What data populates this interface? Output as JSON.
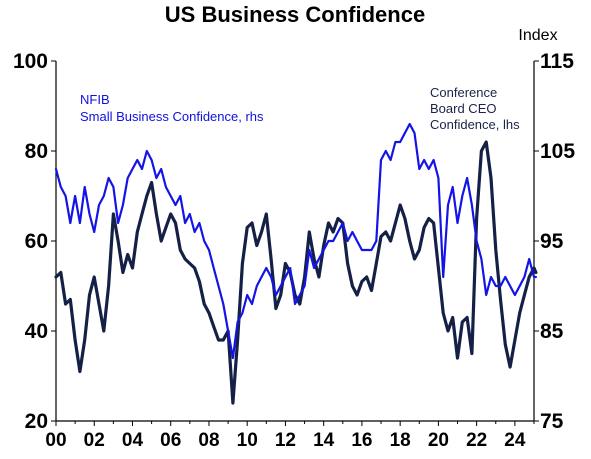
{
  "chart_data": {
    "type": "line",
    "title": "US Business Confidence",
    "right_axis_unit": "Index",
    "xlim": [
      2000,
      2025
    ],
    "x_tick_labels": [
      "00",
      "02",
      "04",
      "06",
      "08",
      "10",
      "12",
      "14",
      "16",
      "18",
      "20",
      "22",
      "24"
    ],
    "x_tick_values": [
      2000,
      2002,
      2004,
      2006,
      2008,
      2010,
      2012,
      2014,
      2016,
      2018,
      2020,
      2022,
      2024
    ],
    "y_left": {
      "ylim": [
        20,
        100
      ],
      "ticks": [
        20,
        40,
        60,
        80,
        100
      ]
    },
    "y_right": {
      "ylim": [
        75,
        115
      ],
      "ticks": [
        75,
        85,
        95,
        105,
        115
      ]
    },
    "grid": false,
    "series": [
      {
        "name": "Conference Board CEO Confidence, lhs",
        "axis": "left",
        "color": "#152046",
        "label_lines": [
          "Conference",
          "Board CEO",
          "Confidence, lhs"
        ],
        "points": [
          [
            2000.0,
            52
          ],
          [
            2000.25,
            53
          ],
          [
            2000.5,
            46
          ],
          [
            2000.75,
            47
          ],
          [
            2001.0,
            38
          ],
          [
            2001.25,
            31
          ],
          [
            2001.5,
            38
          ],
          [
            2001.75,
            48
          ],
          [
            2002.0,
            52
          ],
          [
            2002.25,
            46
          ],
          [
            2002.5,
            40
          ],
          [
            2002.75,
            50
          ],
          [
            2003.0,
            66
          ],
          [
            2003.25,
            60
          ],
          [
            2003.5,
            53
          ],
          [
            2003.75,
            57
          ],
          [
            2004.0,
            54
          ],
          [
            2004.25,
            62
          ],
          [
            2004.5,
            66
          ],
          [
            2004.75,
            70
          ],
          [
            2005.0,
            73
          ],
          [
            2005.25,
            66
          ],
          [
            2005.5,
            60
          ],
          [
            2005.75,
            63
          ],
          [
            2006.0,
            66
          ],
          [
            2006.25,
            64
          ],
          [
            2006.5,
            58
          ],
          [
            2006.75,
            56
          ],
          [
            2007.0,
            55
          ],
          [
            2007.25,
            54
          ],
          [
            2007.5,
            51
          ],
          [
            2007.75,
            46
          ],
          [
            2008.0,
            44
          ],
          [
            2008.25,
            41
          ],
          [
            2008.5,
            38
          ],
          [
            2008.75,
            38
          ],
          [
            2009.0,
            40
          ],
          [
            2009.25,
            24
          ],
          [
            2009.5,
            38
          ],
          [
            2009.75,
            55
          ],
          [
            2010.0,
            63
          ],
          [
            2010.25,
            64
          ],
          [
            2010.5,
            59
          ],
          [
            2010.75,
            62
          ],
          [
            2011.0,
            66
          ],
          [
            2011.25,
            56
          ],
          [
            2011.5,
            45
          ],
          [
            2011.75,
            48
          ],
          [
            2012.0,
            55
          ],
          [
            2012.25,
            53
          ],
          [
            2012.5,
            48
          ],
          [
            2012.75,
            46
          ],
          [
            2013.0,
            52
          ],
          [
            2013.25,
            62
          ],
          [
            2013.5,
            56
          ],
          [
            2013.75,
            52
          ],
          [
            2014.0,
            59
          ],
          [
            2014.25,
            64
          ],
          [
            2014.5,
            62
          ],
          [
            2014.75,
            65
          ],
          [
            2015.0,
            64
          ],
          [
            2015.25,
            55
          ],
          [
            2015.5,
            50
          ],
          [
            2015.75,
            48
          ],
          [
            2016.0,
            51
          ],
          [
            2016.25,
            52
          ],
          [
            2016.5,
            49
          ],
          [
            2016.75,
            55
          ],
          [
            2017.0,
            61
          ],
          [
            2017.25,
            62
          ],
          [
            2017.5,
            60
          ],
          [
            2017.75,
            64
          ],
          [
            2018.0,
            68
          ],
          [
            2018.25,
            65
          ],
          [
            2018.5,
            60
          ],
          [
            2018.75,
            56
          ],
          [
            2019.0,
            58
          ],
          [
            2019.25,
            63
          ],
          [
            2019.5,
            65
          ],
          [
            2019.75,
            64
          ],
          [
            2020.0,
            54
          ],
          [
            2020.25,
            44
          ],
          [
            2020.5,
            40
          ],
          [
            2020.75,
            43
          ],
          [
            2021.0,
            34
          ],
          [
            2021.25,
            42
          ],
          [
            2021.5,
            43
          ],
          [
            2021.75,
            35
          ],
          [
            2022.0,
            65
          ],
          [
            2022.25,
            80
          ],
          [
            2022.5,
            82
          ],
          [
            2022.75,
            74
          ],
          [
            2023.0,
            58
          ],
          [
            2023.25,
            47
          ],
          [
            2023.5,
            37
          ],
          [
            2023.75,
            32
          ],
          [
            2024.0,
            38
          ],
          [
            2024.25,
            44
          ],
          [
            2024.5,
            48
          ],
          [
            2024.75,
            52
          ],
          [
            2025.0,
            54
          ],
          [
            2025.1,
            53
          ]
        ]
      },
      {
        "name": "NFIB Small Business Confidence, rhs",
        "axis": "right",
        "color": "#1414e6",
        "label_lines": [
          "NFIB",
          "Small Business Confidence, rhs"
        ],
        "points": [
          [
            2000.0,
            103
          ],
          [
            2000.25,
            101
          ],
          [
            2000.5,
            100
          ],
          [
            2000.75,
            97
          ],
          [
            2001.0,
            100
          ],
          [
            2001.25,
            97
          ],
          [
            2001.5,
            101
          ],
          [
            2001.75,
            98
          ],
          [
            2002.0,
            96
          ],
          [
            2002.25,
            99
          ],
          [
            2002.5,
            100
          ],
          [
            2002.75,
            102
          ],
          [
            2003.0,
            101
          ],
          [
            2003.25,
            97
          ],
          [
            2003.5,
            99
          ],
          [
            2003.75,
            102
          ],
          [
            2004.0,
            103
          ],
          [
            2004.25,
            104
          ],
          [
            2004.5,
            103
          ],
          [
            2004.75,
            105
          ],
          [
            2005.0,
            104
          ],
          [
            2005.25,
            102
          ],
          [
            2005.5,
            103
          ],
          [
            2005.75,
            101
          ],
          [
            2006.0,
            100
          ],
          [
            2006.25,
            99
          ],
          [
            2006.5,
            100
          ],
          [
            2006.75,
            97
          ],
          [
            2007.0,
            98
          ],
          [
            2007.25,
            96
          ],
          [
            2007.5,
            97
          ],
          [
            2007.75,
            95
          ],
          [
            2008.0,
            94
          ],
          [
            2008.25,
            92
          ],
          [
            2008.5,
            90
          ],
          [
            2008.75,
            88
          ],
          [
            2009.0,
            85
          ],
          [
            2009.25,
            82
          ],
          [
            2009.5,
            86
          ],
          [
            2009.75,
            87
          ],
          [
            2010.0,
            89
          ],
          [
            2010.25,
            88
          ],
          [
            2010.5,
            90
          ],
          [
            2010.75,
            91
          ],
          [
            2011.0,
            92
          ],
          [
            2011.25,
            91
          ],
          [
            2011.5,
            89
          ],
          [
            2011.75,
            90
          ],
          [
            2012.0,
            91
          ],
          [
            2012.25,
            92
          ],
          [
            2012.5,
            88
          ],
          [
            2012.75,
            89
          ],
          [
            2013.0,
            90
          ],
          [
            2013.25,
            94
          ],
          [
            2013.5,
            92
          ],
          [
            2013.75,
            93
          ],
          [
            2014.0,
            94
          ],
          [
            2014.25,
            95
          ],
          [
            2014.5,
            95
          ],
          [
            2014.75,
            96
          ],
          [
            2015.0,
            97
          ],
          [
            2015.25,
            95
          ],
          [
            2015.5,
            96
          ],
          [
            2015.75,
            95
          ],
          [
            2016.0,
            94
          ],
          [
            2016.25,
            94
          ],
          [
            2016.5,
            94
          ],
          [
            2016.75,
            95
          ],
          [
            2017.0,
            104
          ],
          [
            2017.25,
            105
          ],
          [
            2017.5,
            104
          ],
          [
            2017.75,
            106
          ],
          [
            2018.0,
            106
          ],
          [
            2018.25,
            107
          ],
          [
            2018.5,
            108
          ],
          [
            2018.75,
            107
          ],
          [
            2019.0,
            103
          ],
          [
            2019.25,
            104
          ],
          [
            2019.5,
            103
          ],
          [
            2019.75,
            104
          ],
          [
            2020.0,
            102
          ],
          [
            2020.25,
            91
          ],
          [
            2020.5,
            99
          ],
          [
            2020.75,
            101
          ],
          [
            2021.0,
            97
          ],
          [
            2021.25,
            100
          ],
          [
            2021.5,
            102
          ],
          [
            2021.75,
            99
          ],
          [
            2022.0,
            95
          ],
          [
            2022.25,
            93
          ],
          [
            2022.5,
            89
          ],
          [
            2022.75,
            91
          ],
          [
            2023.0,
            90
          ],
          [
            2023.25,
            90
          ],
          [
            2023.5,
            91
          ],
          [
            2023.75,
            90
          ],
          [
            2024.0,
            89
          ],
          [
            2024.25,
            90
          ],
          [
            2024.5,
            91
          ],
          [
            2024.75,
            93
          ],
          [
            2025.0,
            91
          ],
          [
            2025.1,
            91
          ]
        ]
      }
    ]
  }
}
